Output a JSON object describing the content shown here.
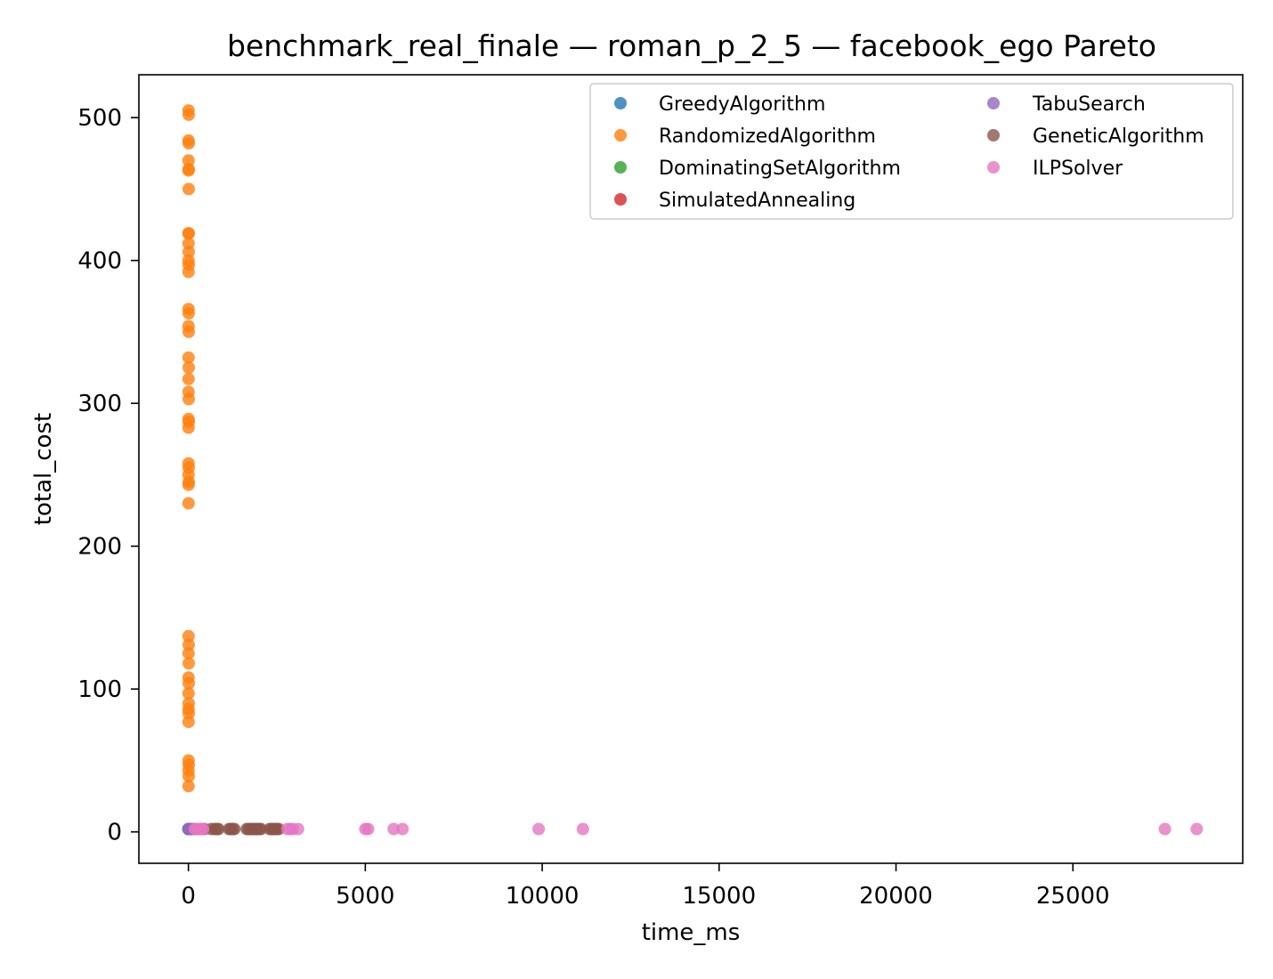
{
  "chart_data": {
    "type": "scatter",
    "title": "benchmark_real_finale — roman_p_2_5 — facebook_ego Pareto",
    "xlabel": "time_ms",
    "ylabel": "total_cost",
    "xlim": [
      -1400,
      29800
    ],
    "ylim": [
      -22,
      530
    ],
    "xticks": [
      0,
      5000,
      10000,
      15000,
      20000,
      25000
    ],
    "yticks": [
      0,
      100,
      200,
      300,
      400,
      500
    ],
    "grid": false,
    "legend_position": "top-right",
    "legend_columns": 2,
    "series": [
      {
        "name": "GreedyAlgorithm",
        "color": "#1f77b4",
        "points": [
          [
            2,
            2
          ],
          [
            5,
            2
          ],
          [
            8,
            2
          ]
        ]
      },
      {
        "name": "RandomizedAlgorithm",
        "color": "#ff7f0e",
        "points": [
          [
            5,
            505
          ],
          [
            8,
            502
          ],
          [
            5,
            484
          ],
          [
            8,
            482
          ],
          [
            5,
            470
          ],
          [
            8,
            464
          ],
          [
            5,
            463
          ],
          [
            8,
            450
          ],
          [
            5,
            419
          ],
          [
            8,
            419
          ],
          [
            5,
            412
          ],
          [
            8,
            406
          ],
          [
            5,
            400
          ],
          [
            8,
            397
          ],
          [
            5,
            392
          ],
          [
            5,
            366
          ],
          [
            8,
            363
          ],
          [
            5,
            354
          ],
          [
            8,
            350
          ],
          [
            5,
            332
          ],
          [
            8,
            325
          ],
          [
            5,
            317
          ],
          [
            5,
            308
          ],
          [
            8,
            303
          ],
          [
            5,
            289
          ],
          [
            8,
            287
          ],
          [
            5,
            283
          ],
          [
            5,
            258
          ],
          [
            8,
            255
          ],
          [
            5,
            250
          ],
          [
            8,
            245
          ],
          [
            5,
            243
          ],
          [
            5,
            230
          ],
          [
            5,
            137
          ],
          [
            8,
            131
          ],
          [
            5,
            125
          ],
          [
            8,
            118
          ],
          [
            5,
            108
          ],
          [
            8,
            104
          ],
          [
            5,
            97
          ],
          [
            8,
            90
          ],
          [
            5,
            86
          ],
          [
            8,
            83
          ],
          [
            5,
            77
          ],
          [
            5,
            50
          ],
          [
            8,
            47
          ],
          [
            5,
            43
          ],
          [
            8,
            39
          ],
          [
            5,
            32
          ],
          [
            5,
            2
          ],
          [
            8,
            2
          ]
        ]
      },
      {
        "name": "DominatingSetAlgorithm",
        "color": "#2ca02c",
        "points": [
          [
            4,
            2
          ],
          [
            10,
            2
          ],
          [
            15,
            2
          ]
        ]
      },
      {
        "name": "SimulatedAnnealing",
        "color": "#d62728",
        "points": [
          [
            20,
            2
          ],
          [
            30,
            2
          ],
          [
            45,
            2
          ],
          [
            60,
            2
          ]
        ]
      },
      {
        "name": "TabuSearch",
        "color": "#9467bd",
        "points": [
          [
            5,
            2
          ],
          [
            15,
            2
          ],
          [
            25,
            2
          ],
          [
            35,
            2
          ],
          [
            50,
            2
          ],
          [
            70,
            2
          ],
          [
            90,
            2
          ],
          [
            120,
            2
          ],
          [
            150,
            2
          ],
          [
            180,
            2
          ],
          [
            220,
            2
          ],
          [
            260,
            2
          ]
        ]
      },
      {
        "name": "GeneticAlgorithm",
        "color": "#8c564b",
        "points": [
          [
            300,
            2
          ],
          [
            350,
            2
          ],
          [
            400,
            2
          ],
          [
            450,
            2
          ],
          [
            650,
            2
          ],
          [
            750,
            2
          ],
          [
            800,
            2
          ],
          [
            850,
            2
          ],
          [
            1150,
            2
          ],
          [
            1200,
            2
          ],
          [
            1250,
            2
          ],
          [
            1300,
            2
          ],
          [
            1650,
            2
          ],
          [
            1700,
            2
          ],
          [
            1750,
            2
          ],
          [
            1800,
            2
          ],
          [
            1850,
            2
          ],
          [
            1900,
            2
          ],
          [
            1950,
            2
          ],
          [
            2000,
            2
          ],
          [
            2050,
            2
          ],
          [
            2300,
            2
          ],
          [
            2350,
            2
          ],
          [
            2400,
            2
          ],
          [
            2450,
            2
          ],
          [
            2500,
            2
          ],
          [
            2550,
            2
          ]
        ]
      },
      {
        "name": "ILPSolver",
        "color": "#e377c2",
        "points": [
          [
            180,
            2
          ],
          [
            220,
            2
          ],
          [
            260,
            2
          ],
          [
            300,
            2
          ],
          [
            340,
            2
          ],
          [
            380,
            2
          ],
          [
            420,
            2
          ],
          [
            2800,
            2
          ],
          [
            2880,
            2
          ],
          [
            2950,
            2
          ],
          [
            3100,
            2
          ],
          [
            5000,
            2
          ],
          [
            5080,
            2
          ],
          [
            5800,
            2
          ],
          [
            6050,
            2
          ],
          [
            9900,
            2
          ],
          [
            11150,
            2
          ],
          [
            27600,
            2
          ],
          [
            28500,
            2
          ]
        ]
      }
    ]
  }
}
